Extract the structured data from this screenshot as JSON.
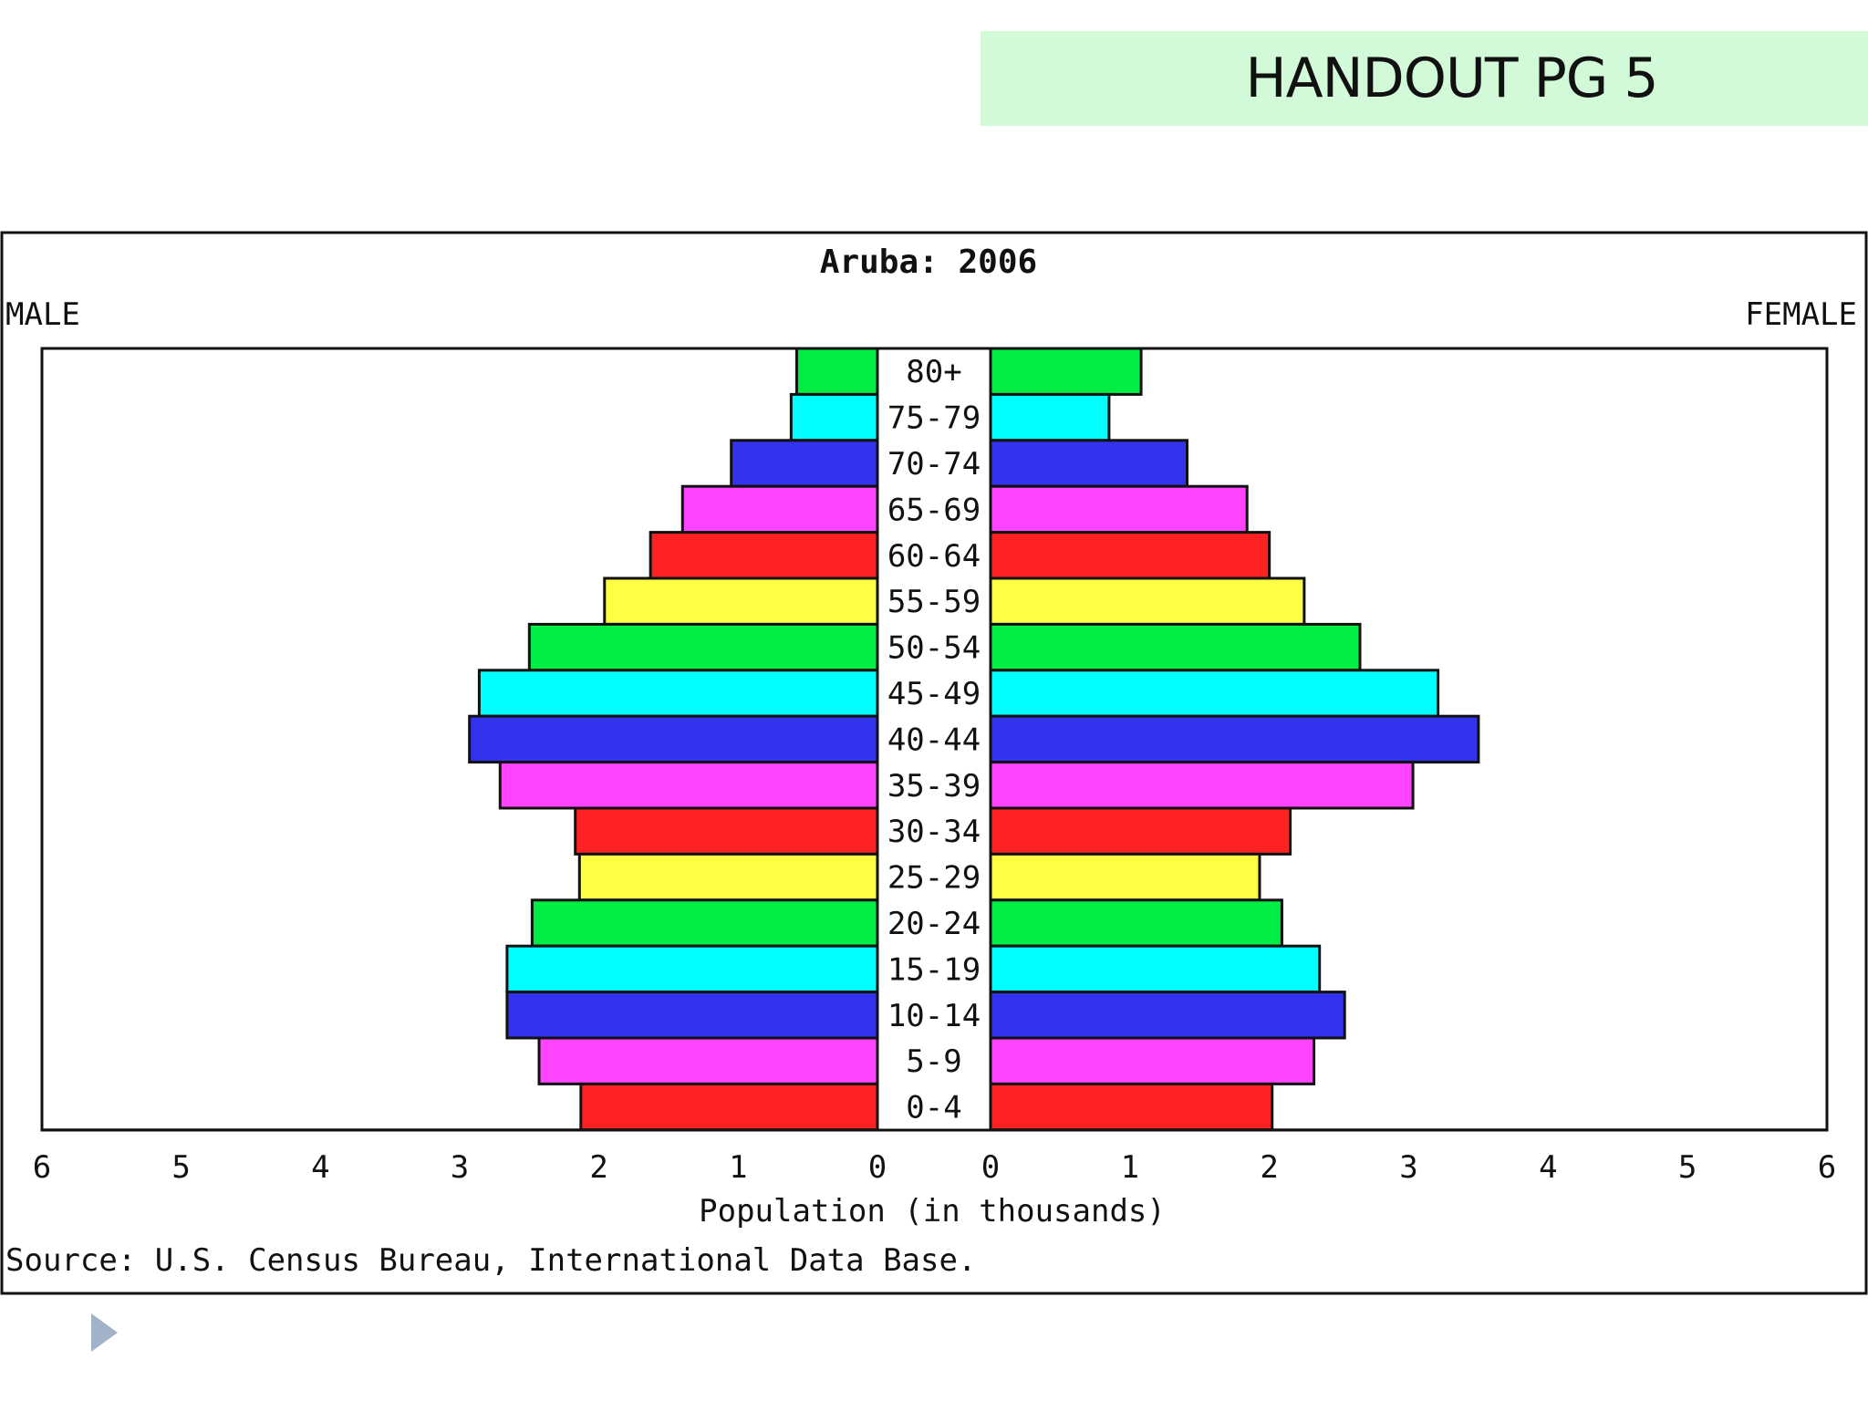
{
  "slide": {
    "handout_title": "HANDOUT PG 5"
  },
  "colors": {
    "banner": "#d3fad8",
    "frame": "#111111",
    "play_marker": "#a2b2c8"
  },
  "chart_data": {
    "type": "bar",
    "orientation": "horizontal",
    "layout": "population-pyramid",
    "title": "Aruba: 2006",
    "left_label": "MALE",
    "right_label": "FEMALE",
    "xlabel": "Population (in thousands)",
    "source": "Source: U.S. Census Bureau, International Data Base.",
    "xlim": [
      0,
      6
    ],
    "x_ticks": [
      "6",
      "5",
      "4",
      "3",
      "2",
      "1",
      "0",
      "0",
      "1",
      "2",
      "3",
      "4",
      "5",
      "6"
    ],
    "categories": [
      "80+",
      "75-79",
      "70-74",
      "65-69",
      "60-64",
      "55-59",
      "50-54",
      "45-49",
      "40-44",
      "35-39",
      "30-34",
      "25-29",
      "20-24",
      "15-19",
      "10-14",
      "5-9",
      "0-4"
    ],
    "bar_colors": [
      "#00ee44",
      "#00ffff",
      "#3333ee",
      "#ff44ff",
      "#ff2222",
      "#ffff44",
      "#00ee44",
      "#00ffff",
      "#3333ee",
      "#ff44ff",
      "#ff2222",
      "#ffff44",
      "#00ee44",
      "#00ffff",
      "#3333ee",
      "#ff44ff",
      "#ff2222"
    ],
    "series": [
      {
        "name": "MALE",
        "values": [
          0.58,
          0.62,
          1.05,
          1.4,
          1.63,
          1.96,
          2.5,
          2.86,
          2.93,
          2.71,
          2.17,
          2.14,
          2.48,
          2.66,
          2.66,
          2.43,
          2.13
        ]
      },
      {
        "name": "FEMALE",
        "values": [
          1.08,
          0.85,
          1.41,
          1.84,
          2.0,
          2.25,
          2.65,
          3.21,
          3.5,
          3.03,
          2.15,
          1.93,
          2.09,
          2.36,
          2.54,
          2.32,
          2.02
        ]
      }
    ],
    "grid": false,
    "legend": "none"
  }
}
